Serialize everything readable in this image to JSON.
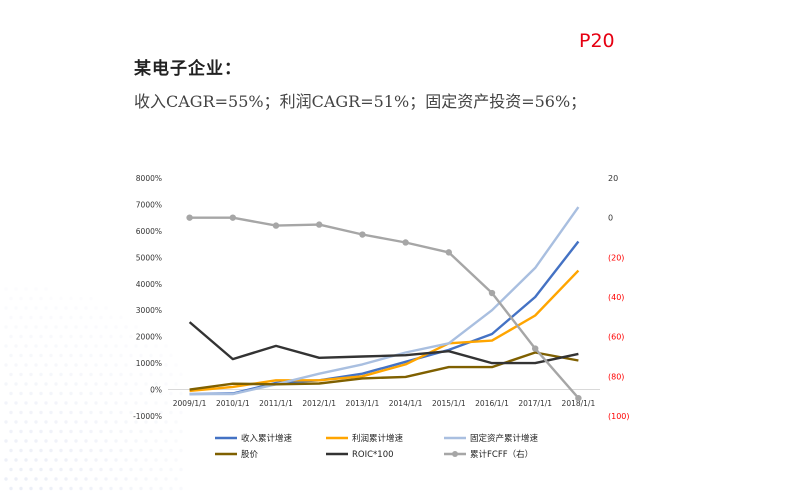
{
  "header": {
    "page_number": "P20",
    "title": "某电子企业：",
    "subtitle": "收入CAGR=55%；利润CAGR=51%；固定资产投资=56%；"
  },
  "chart_data": {
    "type": "line",
    "categories": [
      "2009/1/1",
      "2010/1/1",
      "2011/1/1",
      "2012/1/1",
      "2013/1/1",
      "2014/1/1",
      "2015/1/1",
      "2016/1/1",
      "2017/1/1",
      "2018/1/1"
    ],
    "left_axis": {
      "ylim": [
        -1000,
        8000
      ],
      "ticks": [
        -1000,
        0,
        1000,
        2000,
        3000,
        4000,
        5000,
        6000,
        7000,
        8000
      ],
      "tick_labels": [
        "-1000%",
        "0%",
        "1000%",
        "2000%",
        "3000%",
        "4000%",
        "5000%",
        "6000%",
        "7000%",
        "8000%"
      ]
    },
    "right_axis": {
      "ylim": [
        -100,
        20
      ],
      "ticks": [
        20,
        0,
        -20,
        -40,
        -60,
        -80,
        -100
      ],
      "tick_labels": [
        "20",
        "0",
        "(20)",
        "(40)",
        "(60)",
        "(80)",
        "(100)"
      ],
      "negative_color": "#ff0000"
    },
    "series": [
      {
        "name": "收入累计增速",
        "color": "#4472c4",
        "axis": "left",
        "marker": false,
        "values": [
          -170,
          -150,
          250,
          350,
          600,
          1050,
          1500,
          2100,
          3500,
          5600
        ]
      },
      {
        "name": "利润累计增速",
        "color": "#ffa500",
        "axis": "left",
        "marker": false,
        "values": [
          -50,
          100,
          350,
          350,
          500,
          950,
          1750,
          1850,
          2800,
          4500
        ]
      },
      {
        "name": "固定资产累计增速",
        "color": "#a9bfe0",
        "axis": "left",
        "marker": false,
        "values": [
          -170,
          -170,
          200,
          600,
          950,
          1400,
          1750,
          3000,
          4600,
          6900
        ]
      },
      {
        "name": "股价",
        "color": "#7f6000",
        "axis": "left",
        "marker": false,
        "values": [
          0,
          220,
          200,
          230,
          420,
          480,
          850,
          850,
          1400,
          1100
        ]
      },
      {
        "name": "ROIC*100",
        "color": "#333333",
        "axis": "left",
        "marker": false,
        "values": [
          2550,
          1150,
          1650,
          1200,
          1250,
          1300,
          1450,
          1000,
          1000,
          1350
        ]
      },
      {
        "name": "累计FCFF（右）",
        "color": "#a6a6a6",
        "axis": "right",
        "marker": true,
        "values": [
          0,
          0,
          -4,
          -3.5,
          -8.5,
          -12.5,
          -17.5,
          -38,
          -66,
          -91
        ]
      }
    ]
  }
}
